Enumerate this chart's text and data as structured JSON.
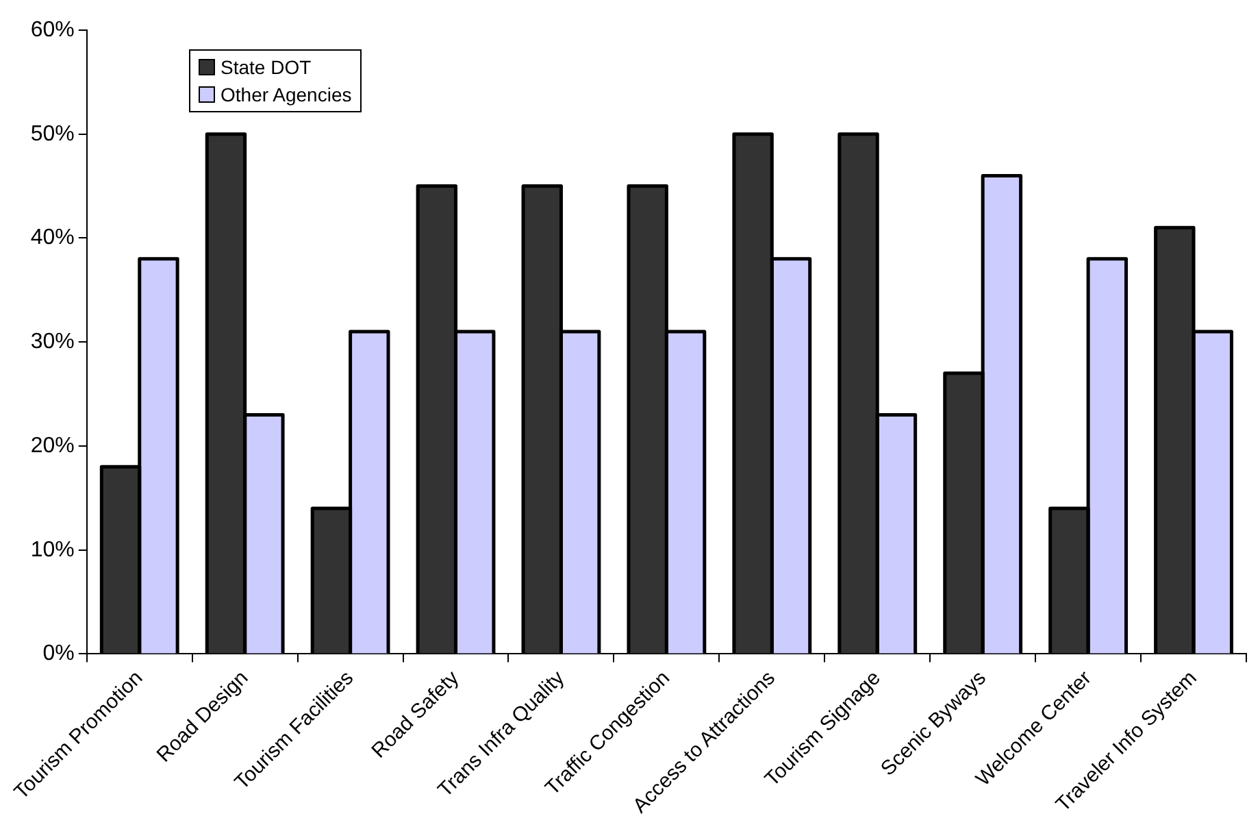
{
  "chart_data": {
    "type": "bar",
    "categories": [
      "Tourism Promotion",
      "Road Design",
      "Tourism Facilities",
      "Road Safety",
      "Trans Infra Quality",
      "Traffic Congestion",
      "Access to Attractions",
      "Tourism Signage",
      "Scenic Byways",
      "Welcome Center",
      "Traveler Info System"
    ],
    "series": [
      {
        "name": "State DOT",
        "color": "#333333",
        "values": [
          18,
          50,
          14,
          45,
          45,
          45,
          50,
          50,
          27,
          14,
          41
        ]
      },
      {
        "name": "Other Agencies",
        "color": "#ccccff",
        "values": [
          38,
          23,
          31,
          31,
          31,
          31,
          38,
          23,
          46,
          38,
          31
        ]
      }
    ],
    "ylim": [
      0,
      60
    ],
    "yticks": [
      {
        "value": 0,
        "label": "0%"
      },
      {
        "value": 10,
        "label": "10%"
      },
      {
        "value": 20,
        "label": "20%"
      },
      {
        "value": 30,
        "label": "30%"
      },
      {
        "value": 40,
        "label": "40%"
      },
      {
        "value": 50,
        "label": "50%"
      },
      {
        "value": 60,
        "label": "60%"
      }
    ],
    "grid": false,
    "legend": "top left"
  }
}
